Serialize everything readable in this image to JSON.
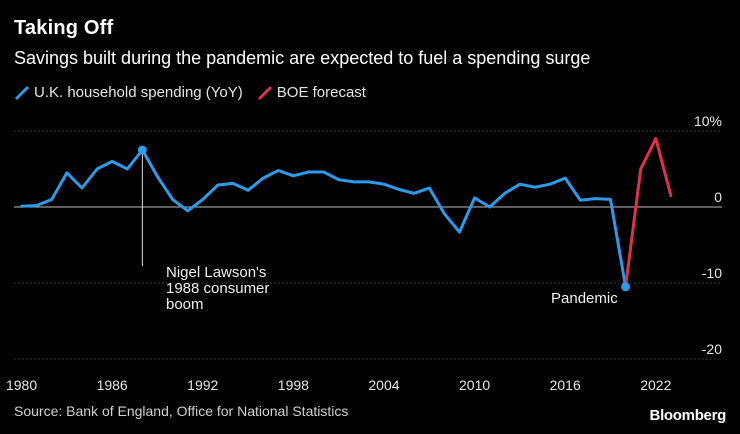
{
  "header": {
    "title": "Taking Off",
    "subtitle": "Savings built during the pandemic are expected to fuel a spending surge"
  },
  "legend": {
    "items": [
      {
        "label": "U.K. household spending (YoY)",
        "color": "#2b9bea"
      },
      {
        "label": "BOE forecast",
        "color": "#e0304a"
      }
    ]
  },
  "footer": {
    "source": "Source: Bank of England, Office for National Statistics",
    "brand": "Bloomberg"
  },
  "chart_data": {
    "type": "line",
    "ylim": [
      -20,
      10
    ],
    "yticks": [
      10,
      0,
      -10,
      -20
    ],
    "ytick_labels": [
      "10%",
      "0",
      "-10",
      "-20"
    ],
    "xlim": [
      1979.5,
      2024
    ],
    "xticks": [
      1980,
      1986,
      1992,
      1998,
      2004,
      2010,
      2016,
      2022
    ],
    "xtick_labels": [
      "1980",
      "1986",
      "1992",
      "1998",
      "2004",
      "2010",
      "2016",
      "2022"
    ],
    "grid": "horizontal",
    "legend_position": "top-left",
    "series": [
      {
        "name": "U.K. household spending (YoY)",
        "color": "#2b9bea",
        "x": [
          1980,
          1981,
          1982,
          1983,
          1984,
          1985,
          1986,
          1987,
          1988,
          1989,
          1990,
          1991,
          1992,
          1993,
          1994,
          1995,
          1996,
          1997,
          1998,
          1999,
          2000,
          2001,
          2002,
          2003,
          2004,
          2005,
          2006,
          2007,
          2008,
          2009,
          2010,
          2011,
          2012,
          2013,
          2014,
          2015,
          2016,
          2017,
          2018,
          2019,
          2020
        ],
        "y": [
          0.1,
          0.2,
          1.0,
          4.5,
          2.5,
          5.0,
          6.0,
          5.0,
          7.5,
          4.0,
          1.0,
          -0.5,
          1.0,
          2.9,
          3.1,
          2.2,
          3.8,
          4.8,
          4.1,
          4.6,
          4.6,
          3.6,
          3.3,
          3.3,
          3.0,
          2.3,
          1.8,
          2.5,
          -0.9,
          -3.3,
          1.2,
          0.0,
          1.8,
          3.0,
          2.6,
          3.0,
          3.8,
          0.9,
          1.1,
          1.0,
          -10.5
        ]
      },
      {
        "name": "BOE forecast",
        "color": "#e0304a",
        "x": [
          2020,
          2021,
          2022,
          2023
        ],
        "y": [
          -10.5,
          5.0,
          9.0,
          1.5
        ]
      }
    ],
    "highlights": [
      {
        "x": 1988,
        "y": 7.5,
        "label_lines": [
          "Nigel Lawson's",
          "1988 consumer",
          "boom"
        ]
      },
      {
        "x": 2020,
        "y": -10.5,
        "label_lines": [
          "Pandemic"
        ]
      }
    ]
  }
}
